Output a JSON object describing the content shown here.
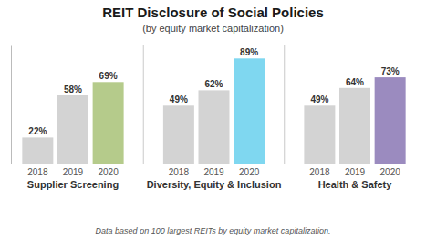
{
  "chart_data": {
    "type": "bar",
    "title": "REIT Disclosure of Social Policies",
    "subtitle": "(by equity market capitalization)",
    "annotations": [
      "Data based on 100 largest REITs by equity market capitalization."
    ],
    "categories": [
      "2018",
      "2019",
      "2020"
    ],
    "series": [
      {
        "name": "Supplier Screening",
        "values": [
          22,
          58,
          69
        ],
        "value_labels": [
          "22%",
          "58%",
          "69%"
        ],
        "colors": [
          "#d3d3d3",
          "#d3d3d3",
          "#b5cb8b"
        ]
      },
      {
        "name": "Diversity, Equity & Inclusion",
        "values": [
          49,
          62,
          89
        ],
        "value_labels": [
          "49%",
          "62%",
          "89%"
        ],
        "colors": [
          "#d3d3d3",
          "#d3d3d3",
          "#7fd7f0"
        ]
      },
      {
        "name": "Health & Safety",
        "values": [
          49,
          64,
          73
        ],
        "value_labels": [
          "49%",
          "64%",
          "73%"
        ],
        "colors": [
          "#d3d3d3",
          "#d3d3d3",
          "#9b8bbf"
        ]
      }
    ],
    "ylim": [
      0,
      100
    ],
    "yticks": [],
    "tick_labels": "x",
    "data_labels": true,
    "grid": false
  }
}
